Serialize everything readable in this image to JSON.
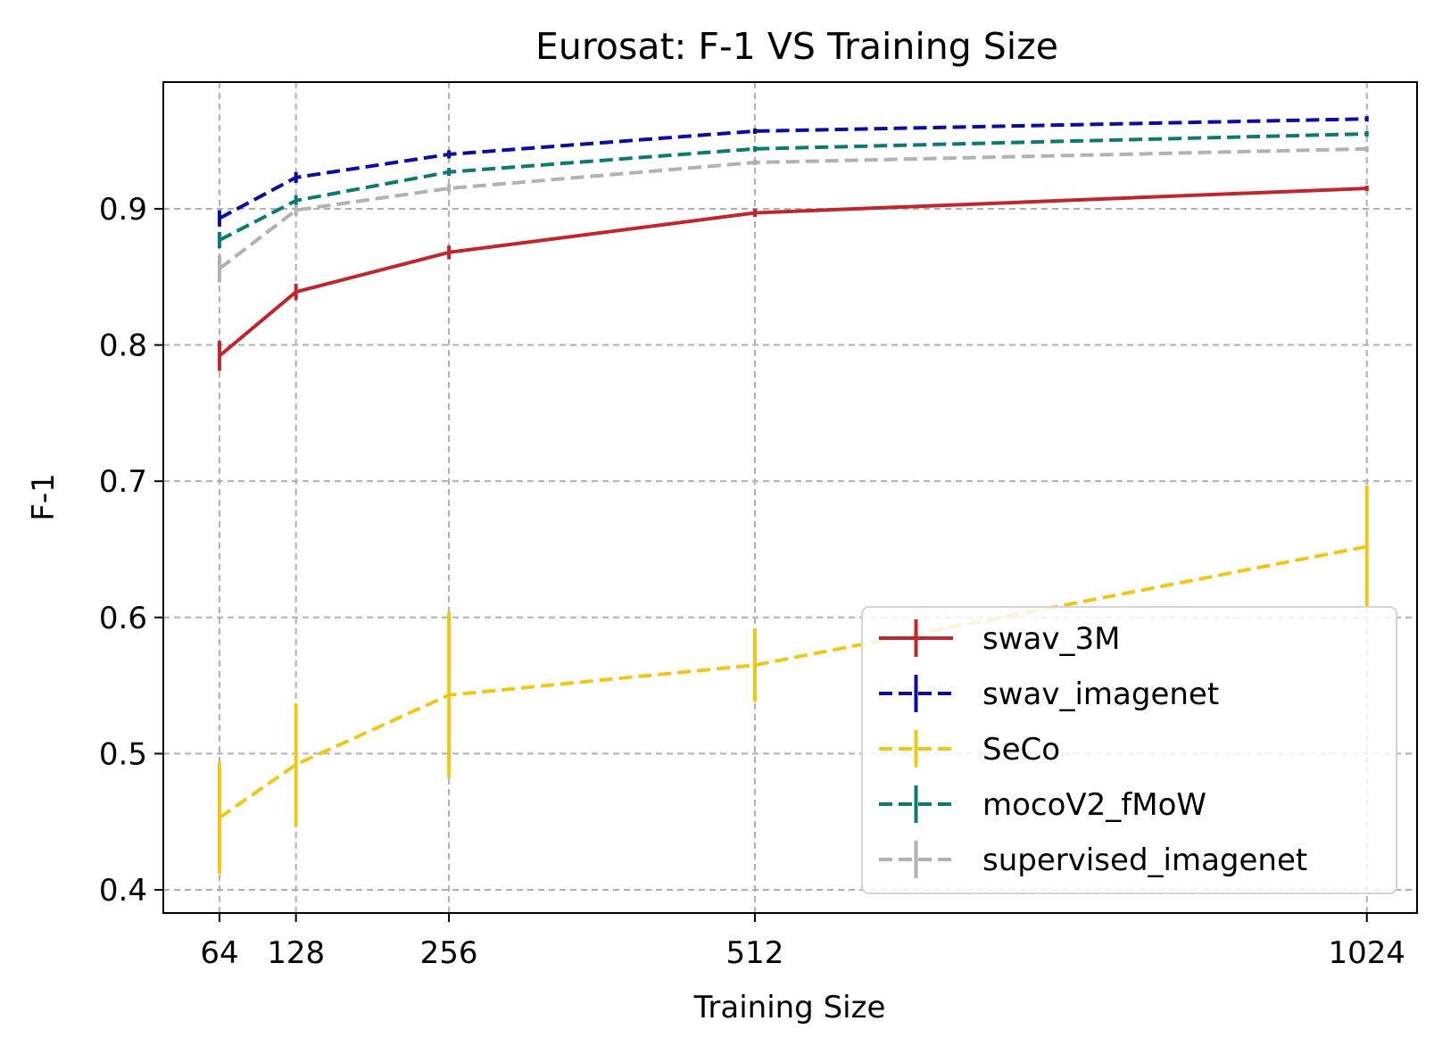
{
  "chart_data": {
    "type": "line",
    "title": "Eurosat: F-1 VS Training Size",
    "xlabel": "Training Size",
    "ylabel": "F-1",
    "x": [
      64,
      128,
      256,
      512,
      1024
    ],
    "x_tick_labels": [
      "64",
      "128",
      "256",
      "512",
      "1024"
    ],
    "y_ticks": [
      0.4,
      0.5,
      0.6,
      0.7,
      0.8,
      0.9
    ],
    "y_tick_labels": [
      "0.4",
      "0.5",
      "0.6",
      "0.7",
      "0.8",
      "0.9"
    ],
    "xlim": [
      17,
      1066
    ],
    "ylim": [
      0.383,
      0.993
    ],
    "grid": true,
    "legend_position": "lower-right",
    "series": [
      {
        "name": "swav_3M",
        "color": "#c0262d",
        "line_style": "solid",
        "values": [
          0.792,
          0.839,
          0.868,
          0.897,
          0.915
        ],
        "errors": [
          0.011,
          0.006,
          0.005,
          0.003,
          0.002
        ]
      },
      {
        "name": "swav_imagenet",
        "color": "#0a0da0",
        "line_style": "dashed",
        "values": [
          0.893,
          0.923,
          0.94,
          0.957,
          0.966
        ],
        "errors": [
          0.006,
          0.004,
          0.003,
          0.002,
          0.002
        ]
      },
      {
        "name": "SeCo",
        "color": "#efc817",
        "line_style": "dashed",
        "values": [
          0.453,
          0.492,
          0.543,
          0.565,
          0.652
        ],
        "errors": [
          0.041,
          0.045,
          0.061,
          0.027,
          0.045
        ]
      },
      {
        "name": "mocoV2_fMoW",
        "color": "#0c7a73",
        "line_style": "dashed",
        "values": [
          0.877,
          0.906,
          0.927,
          0.944,
          0.955
        ],
        "errors": [
          0.006,
          0.004,
          0.003,
          0.002,
          0.002
        ]
      },
      {
        "name": "supervised_imagenet",
        "color": "#b2b2b2",
        "line_style": "dashed",
        "values": [
          0.856,
          0.899,
          0.915,
          0.934,
          0.944
        ],
        "errors": [
          0.01,
          0.004,
          0.003,
          0.002,
          0.002
        ]
      }
    ]
  }
}
